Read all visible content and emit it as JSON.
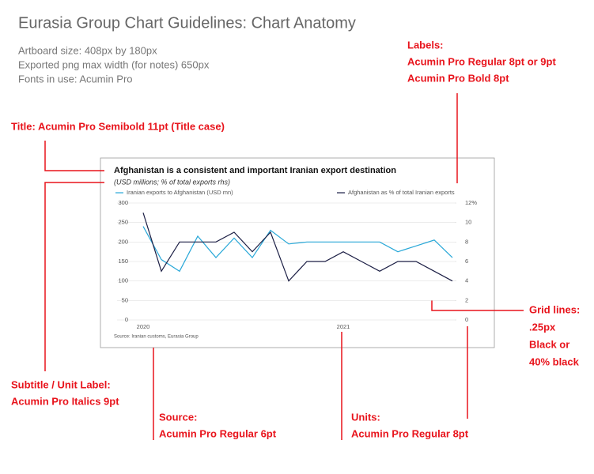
{
  "header": {
    "title": "Eurasia Group Chart Guidelines: Chart Anatomy",
    "info": [
      "Artboard size: 408px by 180px",
      "Exported png max width (for notes) 650px",
      "Fonts in use: Acumin Pro"
    ]
  },
  "annotations": {
    "labels": [
      "Labels:",
      "Acumin Pro Regular 8pt or 9pt",
      "Acumin Pro Bold 8pt"
    ],
    "title": [
      "Title: Acumin Pro Semibold 11pt (Title case)"
    ],
    "subtitle": [
      "Subtitle / Unit Label:",
      "Acumin Pro Italics 9pt"
    ],
    "source": [
      "Source:",
      "Acumin Pro Regular 6pt"
    ],
    "units": [
      "Units:",
      "Acumin Pro Regular 8pt"
    ],
    "grid": [
      "Grid lines:",
      ".25px",
      "Black or",
      "40% black"
    ]
  },
  "chart_data": {
    "type": "line",
    "title": "Afghanistan is a consistent and important Iranian export destination",
    "subtitle": "(USD millions; % of total exports rhs)",
    "source": "Source: Iranian customs, Eurasia Group",
    "categories": [
      "2020",
      null,
      null,
      null,
      null,
      null,
      null,
      null,
      null,
      null,
      null,
      "2021",
      null,
      null,
      null,
      null,
      null,
      null
    ],
    "series": [
      {
        "name": "Iranian exports to Afghanistan (USD mn)",
        "color": "#29a8d8",
        "values": [
          240,
          155,
          125,
          215,
          160,
          210,
          160,
          230,
          195,
          200,
          200,
          200,
          200,
          200,
          175,
          190,
          205,
          160
        ]
      },
      {
        "name": "Afghanistan as % of total Iranian exports",
        "color": "#1c1f45",
        "axis": "y2",
        "values": [
          11,
          5,
          8,
          8,
          8,
          9,
          7,
          9,
          4,
          6,
          6,
          7,
          6,
          5,
          6,
          6,
          5,
          4
        ]
      }
    ],
    "ylim": [
      0,
      300
    ],
    "yticks": [
      0,
      50,
      100,
      150,
      200,
      250,
      300
    ],
    "y2lim": [
      0,
      12
    ],
    "y2ticks": [
      0,
      2,
      4,
      6,
      8,
      10,
      {
        "value": 12,
        "label": "12%"
      }
    ],
    "grid": true
  }
}
